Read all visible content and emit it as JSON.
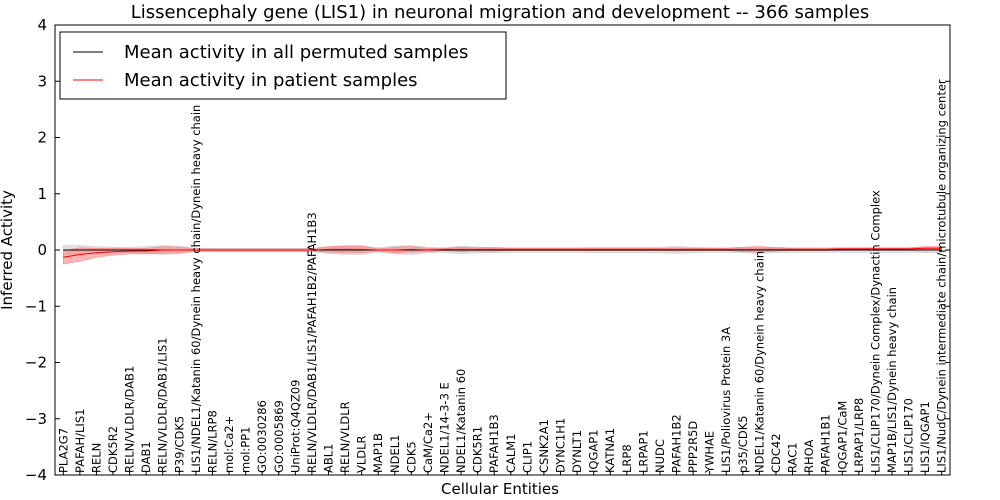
{
  "chart_data": {
    "type": "line",
    "title": "Lissencephaly gene (LIS1) in neuronal migration and development -- 366 samples",
    "xlabel": "Cellular Entities",
    "ylabel": "Inferred Activity",
    "ylim": [
      -4,
      4
    ],
    "yticks": [
      "−4",
      "−3",
      "−2",
      "−1",
      "0",
      "1",
      "2",
      "3",
      "4"
    ],
    "grid": false,
    "legend_position": "top-left",
    "categories": [
      "PLA2G7",
      "PAFAH/LIS1",
      "RELN",
      "CDK5R2",
      "RELN/VLDLR/DAB1",
      "DAB1",
      "RELN/VLDLR/DAB1/LIS1",
      "P39/CDK5",
      "LIS1/NDEL1/Katanin 60/Dynein heavy chain/Dynein heavy chain",
      "RELN/LRP8",
      "mol:Ca2+",
      "mol:PP1",
      "GO:0030286",
      "GO:0005869",
      "UniProt:Q4QZ09",
      "RELN/VLDLR/DAB1/LIS1/PAFAH1B2/PAFAH1B3",
      "ABL1",
      "RELN/VLDLR",
      "VLDLR",
      "MAP1B",
      "NDEL1",
      "CDK5",
      "CaM/Ca2+",
      "NDEL1/14-3-3 E",
      "NDEL1/Katanin 60",
      "CDK5R1",
      "PAFAH1B3",
      "CALM1",
      "CLIP1",
      "CSNK2A1",
      "DYNC1H1",
      "DYNLT1",
      "IQGAP1",
      "KATNA1",
      "LRP8",
      "LRPAP1",
      "NUDC",
      "PAFAH1B2",
      "PPP2R5D",
      "YWHAE",
      "LIS1/Poliovirus Protein 3A",
      "p35/CDK5",
      "NDEL1/Katanin 60/Dynein heavy chain",
      "CDC42",
      "RAC1",
      "RHOA",
      "PAFAH1B1",
      "IQGAP1/CaM",
      "LRPAP1/LRP8",
      "LIS1/CLIP170/Dynein Complex/Dynactin Complex",
      "MAP1B/LIS1/Dynein heavy chain",
      "LIS1/CLIP170",
      "LIS1/IQGAP1",
      "LIS1/NudC/Dynein intermediate chain/microtubule organizing center"
    ],
    "series": [
      {
        "name": "Mean activity in all permuted samples",
        "color": "#000000",
        "band_color": "#c8c8c8",
        "values": [
          0.0,
          0.0,
          0.0,
          0.0,
          0.0,
          0.0,
          0.0,
          0.0,
          0.0,
          0.0,
          0.0,
          0.0,
          0.0,
          0.0,
          0.0,
          0.0,
          0.0,
          0.0,
          0.0,
          0.0,
          0.0,
          0.0,
          0.0,
          0.0,
          0.0,
          0.0,
          0.0,
          0.0,
          0.0,
          0.0,
          0.0,
          0.0,
          0.0,
          0.0,
          0.0,
          0.0,
          0.0,
          0.0,
          0.0,
          0.0,
          0.0,
          0.0,
          0.0,
          0.0,
          0.0,
          0.0,
          0.0,
          0.0,
          0.0,
          0.0,
          0.0,
          0.0,
          0.0,
          0.0
        ],
        "band": [
          0.08,
          0.08,
          0.06,
          0.05,
          0.05,
          0.06,
          0.08,
          0.07,
          0.03,
          0.03,
          0.03,
          0.03,
          0.03,
          0.03,
          0.03,
          0.03,
          0.06,
          0.08,
          0.08,
          0.04,
          0.07,
          0.08,
          0.05,
          0.04,
          0.07,
          0.05,
          0.05,
          0.04,
          0.04,
          0.04,
          0.04,
          0.04,
          0.05,
          0.05,
          0.05,
          0.05,
          0.05,
          0.06,
          0.05,
          0.04,
          0.04,
          0.05,
          0.06,
          0.05,
          0.04,
          0.04,
          0.04,
          0.04,
          0.04,
          0.04,
          0.04,
          0.04,
          0.05,
          0.05
        ]
      },
      {
        "name": "Mean activity in patient samples",
        "color": "#ff0000",
        "band_color": "#ff8080",
        "values": [
          -0.13,
          -0.08,
          -0.05,
          -0.03,
          -0.02,
          -0.02,
          0.0,
          0.0,
          0.0,
          0.0,
          0.0,
          0.0,
          0.0,
          0.0,
          0.0,
          0.0,
          0.01,
          0.01,
          0.01,
          0.0,
          0.0,
          0.01,
          0.0,
          0.01,
          0.01,
          0.01,
          0.01,
          0.01,
          0.01,
          0.01,
          0.01,
          0.01,
          0.01,
          0.01,
          0.01,
          0.01,
          0.01,
          0.01,
          0.01,
          0.01,
          0.01,
          0.01,
          0.01,
          0.01,
          0.01,
          0.01,
          0.01,
          0.02,
          0.02,
          0.02,
          0.02,
          0.02,
          0.03,
          0.03
        ],
        "band": [
          0.12,
          0.12,
          0.08,
          0.06,
          0.05,
          0.05,
          0.06,
          0.05,
          0.02,
          0.02,
          0.02,
          0.02,
          0.02,
          0.02,
          0.02,
          0.02,
          0.05,
          0.06,
          0.06,
          0.02,
          0.05,
          0.05,
          0.03,
          0.02,
          0.04,
          0.03,
          0.03,
          0.02,
          0.02,
          0.02,
          0.02,
          0.02,
          0.02,
          0.02,
          0.02,
          0.02,
          0.02,
          0.03,
          0.02,
          0.02,
          0.02,
          0.04,
          0.05,
          0.03,
          0.02,
          0.02,
          0.02,
          0.02,
          0.02,
          0.02,
          0.02,
          0.02,
          0.03,
          0.03
        ]
      }
    ]
  }
}
